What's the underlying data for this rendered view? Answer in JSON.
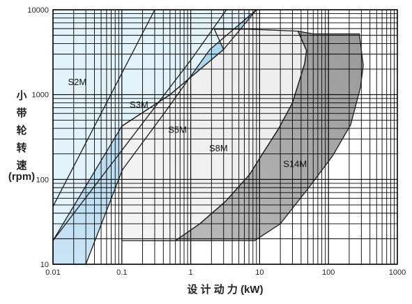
{
  "chart_data": {
    "type": "area",
    "title": "",
    "xlabel": "设 计 动 力 (kW)",
    "ylabel_chars": [
      "小",
      "带",
      "轮",
      "转",
      "速"
    ],
    "ylabel_unit": "(rpm)",
    "x_scale": "log",
    "y_scale": "log",
    "xlim": [
      0.01,
      1000
    ],
    "ylim": [
      10,
      10000
    ],
    "grid": true,
    "x_ticks": [
      0.01,
      0.1,
      1,
      10,
      100,
      1000
    ],
    "x_tick_labels": [
      "0.01",
      "0.1",
      "1",
      "10",
      "100",
      "1000"
    ],
    "y_ticks": [
      10,
      100,
      1000,
      10000
    ],
    "y_tick_labels": [
      "10",
      "100",
      "1000",
      "10000"
    ],
    "colors": {
      "background_region": "#e3f3fb",
      "s5m_fill": "#a9d3ee",
      "s5m_fill_low": "#c9e4f5",
      "s8m_fill": "#ececec",
      "s14m_fill_light": "#bdbdbd",
      "s14m_fill_dark": "#9a9a9a",
      "grid": "#000000"
    },
    "series": [
      {
        "name": "S2M",
        "label_at": [
          0.0165,
          1300
        ],
        "outline": [
          [
            0.01,
            48
          ],
          [
            0.3,
            10000
          ]
        ]
      },
      {
        "name": "S3M",
        "label_at": [
          0.13,
          700
        ],
        "outline": [
          [
            0.01,
            19
          ],
          [
            1.02,
            2600
          ],
          [
            3.3,
            10000
          ]
        ]
      },
      {
        "name": "S5M",
        "label_at": [
          0.47,
          355
        ],
        "outline": [
          [
            0.1,
            425
          ],
          [
            0.5,
            1000
          ],
          [
            3,
            3400
          ],
          [
            9,
            10000
          ],
          [
            1.9,
            3400
          ],
          [
            0.41,
            600
          ],
          [
            0.102,
            130
          ],
          [
            0.03,
            10
          ],
          [
            0.01,
            10
          ],
          [
            0.01,
            19
          ]
        ]
      },
      {
        "name": "S8M",
        "label_at": [
          1.85,
          215
        ],
        "outline": [
          [
            0.1,
            19
          ],
          [
            0.1,
            425
          ],
          [
            0.5,
            1000
          ],
          [
            3,
            3400
          ],
          [
            2.2,
            5900
          ],
          [
            7,
            5900
          ],
          [
            36,
            5600
          ],
          [
            48,
            3300
          ],
          [
            45,
            2300
          ],
          [
            30,
            800
          ],
          [
            19,
            400
          ],
          [
            11,
            200
          ],
          [
            7.2,
            115
          ],
          [
            3.2,
            55
          ],
          [
            1.35,
            30
          ],
          [
            0.6,
            19
          ]
        ]
      },
      {
        "name": "S14M",
        "label_at": [
          22,
          140
        ],
        "outline": [
          [
            0.2,
            19
          ],
          [
            0.6,
            19
          ],
          [
            1.35,
            30
          ],
          [
            3.2,
            55
          ],
          [
            7.2,
            115
          ],
          [
            11,
            200
          ],
          [
            19,
            400
          ],
          [
            30,
            800
          ],
          [
            45,
            2300
          ],
          [
            48,
            3300
          ],
          [
            36,
            5600
          ],
          [
            60,
            5200
          ],
          [
            280,
            5200
          ],
          [
            320,
            2200
          ],
          [
            290,
            1200
          ],
          [
            210,
            440
          ],
          [
            115,
            190
          ],
          [
            55,
            85
          ],
          [
            20,
            30
          ],
          [
            8.5,
            19
          ]
        ]
      }
    ]
  }
}
